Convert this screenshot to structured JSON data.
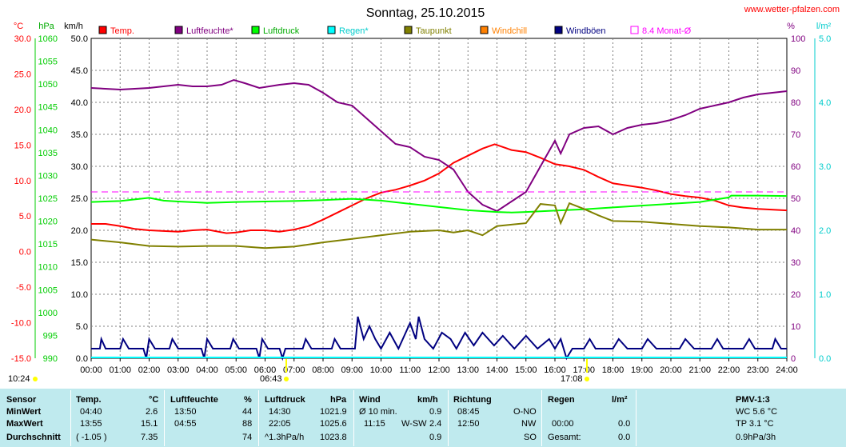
{
  "header": {
    "title": "Sonntag, 25.10.2015",
    "website": "www.wetter-pfalzen.com"
  },
  "axis_units": {
    "temp": "°C",
    "pressure": "hPa",
    "wind": "km/h",
    "humidity": "%",
    "rain": "l/m²"
  },
  "legend": [
    {
      "label": "Temp.",
      "color": "#ff0000"
    },
    {
      "label": "Luftfeuchte*",
      "color": "#800080"
    },
    {
      "label": "Luftdruck",
      "color": "#00ff00"
    },
    {
      "label": "Regen*",
      "color": "#00ffff"
    },
    {
      "label": "Taupunkt",
      "color": "#808000"
    },
    {
      "label": "Windchill",
      "color": "#ff8000"
    },
    {
      "label": "Windböen",
      "color": "#000080"
    },
    {
      "label": "8.4 Monat-Ø",
      "color": "#ff00ff"
    }
  ],
  "sun": {
    "sunrise": "06:43",
    "sunset": "17:08",
    "daylength": "10:24"
  },
  "chart_data": {
    "type": "line",
    "x_unit": "hour of day",
    "xlim": [
      0,
      24
    ],
    "x_tick_labels": [
      "00:00",
      "01:00",
      "02:00",
      "03:00",
      "04:00",
      "05:00",
      "06:00",
      "07:00",
      "08:00",
      "09:00",
      "10:00",
      "11:00",
      "12:00",
      "13:00",
      "14:00",
      "15:00",
      "16:00",
      "17:00",
      "18:00",
      "19:00",
      "20:00",
      "21:00",
      "22:00",
      "23:00",
      "24:00"
    ],
    "axes": {
      "temperature": {
        "label": "°C",
        "range": [
          -15,
          30
        ],
        "ticks": [
          "30.0",
          "25.0",
          "20.0",
          "15.0",
          "10.0",
          "5.0",
          "0.0",
          "-5.0",
          "-10.0",
          "-15.0"
        ],
        "color": "#ff0000"
      },
      "pressure": {
        "label": "hPa",
        "range": [
          990,
          1060
        ],
        "ticks": [
          "1060",
          "1055",
          "1050",
          "1045",
          "1040",
          "1035",
          "1030",
          "1025",
          "1020",
          "1015",
          "1010",
          "1005",
          "1000",
          "995",
          "990"
        ],
        "color": "#00cc00"
      },
      "wind": {
        "label": "km/h",
        "range": [
          0,
          50
        ],
        "ticks": [
          "50.0",
          "45.0",
          "40.0",
          "35.0",
          "30.0",
          "25.0",
          "20.0",
          "15.0",
          "10.0",
          "5.0",
          "0.0"
        ],
        "color": "#000000"
      },
      "humidity": {
        "label": "%",
        "range": [
          0,
          100
        ],
        "ticks": [
          "100",
          "90",
          "80",
          "70",
          "60",
          "50",
          "40",
          "30",
          "20",
          "10",
          "0"
        ],
        "color": "#800080"
      },
      "rain": {
        "label": "l/m²",
        "range": [
          0,
          5
        ],
        "ticks": [
          "5.0",
          "4.0",
          "3.0",
          "2.0",
          "1.0",
          "0.0"
        ],
        "color": "#00cccc"
      }
    },
    "grid": true,
    "series": [
      {
        "name": "Temp.",
        "axis": "temperature",
        "color": "#ff0000",
        "points": [
          [
            0,
            3.9
          ],
          [
            0.5,
            3.9
          ],
          [
            1,
            3.6
          ],
          [
            1.5,
            3.2
          ],
          [
            2,
            3.0
          ],
          [
            2.5,
            2.9
          ],
          [
            3,
            2.8
          ],
          [
            3.5,
            3.0
          ],
          [
            4,
            3.1
          ],
          [
            4.67,
            2.6
          ],
          [
            5,
            2.7
          ],
          [
            5.5,
            3.0
          ],
          [
            6,
            3.0
          ],
          [
            6.5,
            2.8
          ],
          [
            7,
            3.1
          ],
          [
            7.5,
            3.6
          ],
          [
            8,
            4.5
          ],
          [
            8.5,
            5.5
          ],
          [
            9,
            6.5
          ],
          [
            9.5,
            7.5
          ],
          [
            10,
            8.3
          ],
          [
            10.5,
            8.7
          ],
          [
            11,
            9.3
          ],
          [
            11.5,
            10.0
          ],
          [
            12,
            11.0
          ],
          [
            12.5,
            12.5
          ],
          [
            13,
            13.5
          ],
          [
            13.5,
            14.5
          ],
          [
            13.92,
            15.1
          ],
          [
            14,
            15.0
          ],
          [
            14.5,
            14.3
          ],
          [
            15,
            14.0
          ],
          [
            15.5,
            13.2
          ],
          [
            16,
            12.3
          ],
          [
            16.5,
            12.0
          ],
          [
            17,
            11.5
          ],
          [
            17.5,
            10.5
          ],
          [
            18,
            9.6
          ],
          [
            18.5,
            9.3
          ],
          [
            19,
            9.0
          ],
          [
            19.5,
            8.6
          ],
          [
            20,
            8.1
          ],
          [
            20.5,
            7.8
          ],
          [
            21,
            7.6
          ],
          [
            21.5,
            7.2
          ],
          [
            22,
            6.5
          ],
          [
            22.5,
            6.2
          ],
          [
            23,
            6.0
          ],
          [
            24,
            5.8
          ]
        ]
      },
      {
        "name": "Luftfeuchte*",
        "axis": "humidity",
        "color": "#800080",
        "points": [
          [
            0,
            84.5
          ],
          [
            1,
            84
          ],
          [
            2,
            84.5
          ],
          [
            2.5,
            85
          ],
          [
            3,
            85.5
          ],
          [
            3.5,
            85
          ],
          [
            4,
            85
          ],
          [
            4.5,
            85.5
          ],
          [
            4.92,
            87
          ],
          [
            5.3,
            86
          ],
          [
            5.8,
            84.5
          ],
          [
            6.5,
            85.5
          ],
          [
            7,
            86
          ],
          [
            7.5,
            85.5
          ],
          [
            8,
            83
          ],
          [
            8.5,
            80
          ],
          [
            9,
            79
          ],
          [
            9.5,
            75
          ],
          [
            10,
            71
          ],
          [
            10.5,
            67
          ],
          [
            11,
            66
          ],
          [
            11.5,
            63
          ],
          [
            12,
            62
          ],
          [
            12.5,
            59
          ],
          [
            13,
            52
          ],
          [
            13.5,
            48
          ],
          [
            14,
            46
          ],
          [
            14.5,
            49
          ],
          [
            15,
            52
          ],
          [
            15.5,
            60
          ],
          [
            16,
            68
          ],
          [
            16.2,
            64
          ],
          [
            16.5,
            70
          ],
          [
            17,
            72
          ],
          [
            17.5,
            72.5
          ],
          [
            18,
            70
          ],
          [
            18.5,
            72
          ],
          [
            19,
            73
          ],
          [
            19.5,
            73.5
          ],
          [
            20,
            74.5
          ],
          [
            20.5,
            76
          ],
          [
            21,
            78
          ],
          [
            21.5,
            79
          ],
          [
            22,
            80
          ],
          [
            22.5,
            81.5
          ],
          [
            23,
            82.5
          ],
          [
            24,
            83.5
          ]
        ]
      },
      {
        "name": "Luftdruck",
        "axis": "pressure",
        "color": "#00ff00",
        "points": [
          [
            0,
            1024.2
          ],
          [
            1,
            1024.4
          ],
          [
            2,
            1025.1
          ],
          [
            2.5,
            1024.5
          ],
          [
            3,
            1024.3
          ],
          [
            4,
            1024.0
          ],
          [
            5,
            1024.2
          ],
          [
            6,
            1024.3
          ],
          [
            7,
            1024.4
          ],
          [
            8,
            1024.6
          ],
          [
            9,
            1024.9
          ],
          [
            10,
            1024.5
          ],
          [
            11,
            1023.8
          ],
          [
            12,
            1023.1
          ],
          [
            13,
            1022.4
          ],
          [
            14,
            1022.0
          ],
          [
            14.5,
            1021.9
          ],
          [
            15,
            1022.0
          ],
          [
            16,
            1022.3
          ],
          [
            17,
            1022.6
          ],
          [
            18,
            1023.0
          ],
          [
            19,
            1023.4
          ],
          [
            20,
            1023.8
          ],
          [
            21,
            1024.2
          ],
          [
            22,
            1025.2
          ],
          [
            22.08,
            1025.6
          ],
          [
            23,
            1025.6
          ],
          [
            24,
            1025.5
          ]
        ]
      },
      {
        "name": "Taupunkt",
        "axis": "temperature",
        "color": "#808000",
        "points": [
          [
            0,
            1.7
          ],
          [
            1,
            1.3
          ],
          [
            2,
            0.8
          ],
          [
            3,
            0.7
          ],
          [
            4,
            0.8
          ],
          [
            5,
            0.8
          ],
          [
            6,
            0.5
          ],
          [
            7,
            0.7
          ],
          [
            8,
            1.3
          ],
          [
            9,
            1.8
          ],
          [
            10,
            2.3
          ],
          [
            11,
            2.8
          ],
          [
            12,
            3.0
          ],
          [
            12.5,
            2.7
          ],
          [
            13,
            3.0
          ],
          [
            13.5,
            2.3
          ],
          [
            14,
            3.6
          ],
          [
            14.5,
            3.8
          ],
          [
            15,
            4.0
          ],
          [
            15.5,
            6.7
          ],
          [
            16,
            6.5
          ],
          [
            16.2,
            4.0
          ],
          [
            16.5,
            6.8
          ],
          [
            17,
            6.0
          ],
          [
            17.5,
            5.1
          ],
          [
            18,
            4.3
          ],
          [
            19,
            4.2
          ],
          [
            20,
            3.9
          ],
          [
            21,
            3.6
          ],
          [
            22,
            3.4
          ],
          [
            23,
            3.1
          ],
          [
            24,
            3.1
          ]
        ]
      },
      {
        "name": "Windböen",
        "axis": "wind",
        "color": "#000080",
        "points": [
          [
            0,
            1.5
          ],
          [
            0.3,
            1.5
          ],
          [
            0.35,
            3
          ],
          [
            0.5,
            1.5
          ],
          [
            1.0,
            1.5
          ],
          [
            1.1,
            3
          ],
          [
            1.3,
            1.5
          ],
          [
            1.8,
            1.5
          ],
          [
            1.9,
            0
          ],
          [
            2.0,
            3
          ],
          [
            2.2,
            1.5
          ],
          [
            2.7,
            1.5
          ],
          [
            2.8,
            3
          ],
          [
            3.0,
            1.5
          ],
          [
            3.8,
            1.5
          ],
          [
            3.9,
            0
          ],
          [
            4.0,
            3
          ],
          [
            4.2,
            1.5
          ],
          [
            4.8,
            1.5
          ],
          [
            4.9,
            3
          ],
          [
            5.1,
            1.5
          ],
          [
            5.7,
            1.5
          ],
          [
            5.8,
            0
          ],
          [
            5.9,
            3
          ],
          [
            6.1,
            1.5
          ],
          [
            6.5,
            1.5
          ],
          [
            6.6,
            0
          ],
          [
            6.7,
            1.5
          ],
          [
            7.3,
            1.5
          ],
          [
            7.4,
            3
          ],
          [
            7.6,
            1.5
          ],
          [
            8.3,
            1.5
          ],
          [
            8.4,
            3
          ],
          [
            8.6,
            1.5
          ],
          [
            9.1,
            1.5
          ],
          [
            9.2,
            6.5
          ],
          [
            9.4,
            3
          ],
          [
            9.6,
            5
          ],
          [
            9.8,
            3
          ],
          [
            10.0,
            1.5
          ],
          [
            10.3,
            4
          ],
          [
            10.6,
            1.5
          ],
          [
            11.0,
            5.5
          ],
          [
            11.2,
            3
          ],
          [
            11.3,
            6.5
          ],
          [
            11.5,
            3
          ],
          [
            11.8,
            1.5
          ],
          [
            12.1,
            4
          ],
          [
            12.4,
            3
          ],
          [
            12.6,
            1.5
          ],
          [
            12.9,
            4
          ],
          [
            13.2,
            2
          ],
          [
            13.5,
            4
          ],
          [
            13.9,
            2
          ],
          [
            14.2,
            3.5
          ],
          [
            14.6,
            1.5
          ],
          [
            15.0,
            3.5
          ],
          [
            15.4,
            1.5
          ],
          [
            15.8,
            3
          ],
          [
            16.0,
            1.5
          ],
          [
            16.2,
            3
          ],
          [
            16.4,
            0
          ],
          [
            16.6,
            1.5
          ],
          [
            17.0,
            1.5
          ],
          [
            17.2,
            3
          ],
          [
            17.4,
            1.5
          ],
          [
            18.0,
            1.5
          ],
          [
            18.2,
            3
          ],
          [
            18.5,
            1.5
          ],
          [
            19.0,
            1.5
          ],
          [
            19.2,
            3
          ],
          [
            19.5,
            1.5
          ],
          [
            20.3,
            1.5
          ],
          [
            20.5,
            3
          ],
          [
            20.8,
            1.5
          ],
          [
            21.4,
            1.5
          ],
          [
            21.6,
            3
          ],
          [
            21.8,
            1.5
          ],
          [
            22.5,
            1.5
          ],
          [
            22.7,
            3
          ],
          [
            22.9,
            1.5
          ],
          [
            23.5,
            1.5
          ],
          [
            23.6,
            3
          ],
          [
            23.8,
            1.5
          ],
          [
            24,
            1.5
          ]
        ]
      },
      {
        "name": "8.4 Monat-Ø",
        "axis": "temperature",
        "color": "#ff00ff",
        "dashed": true,
        "points": [
          [
            0,
            8.4
          ],
          [
            24,
            8.4
          ]
        ]
      }
    ]
  },
  "table": {
    "row_labels": {
      "sensor": "Sensor",
      "min": "MinWert",
      "max": "MaxWert",
      "avg": "Durchschnitt"
    },
    "temp": {
      "head": "Temp.",
      "unit": "°C",
      "min_time": "04:40",
      "min_val": "2.6",
      "max_time": "13:55",
      "max_val": "15.1",
      "avg_note": "( -1.05 )",
      "avg_val": "7.35"
    },
    "hum": {
      "head": "Luftfeuchte",
      "unit": "%",
      "min_time": "13:50",
      "min_val": "44",
      "max_time": "04:55",
      "max_val": "88",
      "avg_val": "74"
    },
    "press": {
      "head": "Luftdruck",
      "unit": "hPa",
      "min_time": "14:30",
      "min_val": "1021.9",
      "max_time": "22:05",
      "max_val": "1025.6",
      "avg_note": "^1.3hPa/h",
      "avg_val": "1023.8"
    },
    "wind": {
      "head": "Wind",
      "unit": "km/h",
      "min_note": "Ø 10 min.",
      "min_val": "0.9",
      "max_time": "11:15",
      "max_dir": "W-SW",
      "max_val": "2.4",
      "avg_val": "0.9"
    },
    "dir": {
      "head": "Richtung",
      "min_time": "08:45",
      "min_val": "O-NO",
      "max_time": "12:50",
      "max_val": "NW",
      "avg_val": "SO"
    },
    "rain": {
      "head": "Regen",
      "unit": "l/m²",
      "max_time": "00:00",
      "max_val": "0.0",
      "avg_note": "Gesamt:",
      "avg_val": "0.0"
    },
    "pmv": {
      "head": "PMV-1:3",
      "line1": "WC 5.6 °C",
      "line2": "TP 3.1 °C",
      "line3": "0.9hPa/3h"
    }
  }
}
